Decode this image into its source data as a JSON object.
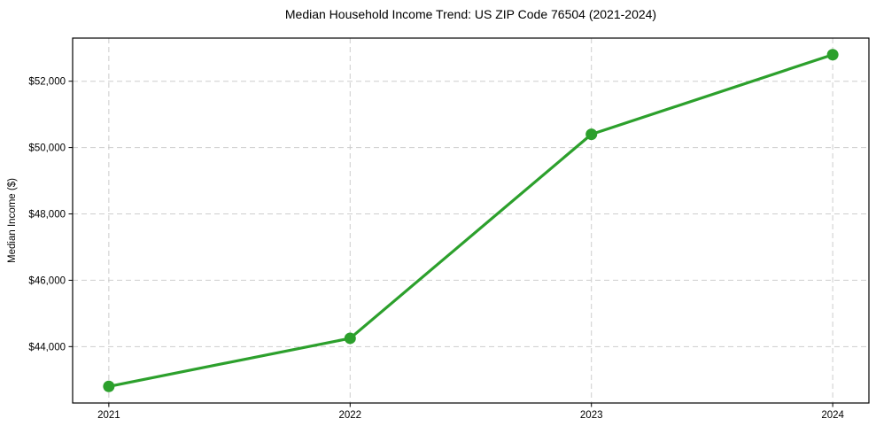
{
  "chart_data": {
    "type": "line",
    "title": "Median Household Income Trend: US ZIP Code 76504 (2021-2024)",
    "xlabel": "",
    "ylabel": "Median Income ($)",
    "categories": [
      "2021",
      "2022",
      "2023",
      "2024"
    ],
    "x": [
      2021,
      2022,
      2023,
      2024
    ],
    "series": [
      {
        "name": "Median Household Income",
        "values": [
          42800,
          44250,
          50400,
          52800
        ]
      }
    ],
    "values": [
      42800,
      44250,
      50400,
      52800
    ],
    "yticks": [
      {
        "value": 44000,
        "label": "$44,000"
      },
      {
        "value": 46000,
        "label": "$46,000"
      },
      {
        "value": 48000,
        "label": "$48,000"
      },
      {
        "value": 50000,
        "label": "$50,000"
      },
      {
        "value": 52000,
        "label": "$52,000"
      }
    ],
    "xlim": [
      2020.85,
      2024.15
    ],
    "ylim": [
      42300,
      53300
    ],
    "grid": true,
    "grid_style": "dashed",
    "legend": "none",
    "marker": "circle",
    "line_color": "#2ca02c",
    "grid_color": "#cdcdcd",
    "spine_color": "#000000",
    "background_color": "#ffffff"
  }
}
